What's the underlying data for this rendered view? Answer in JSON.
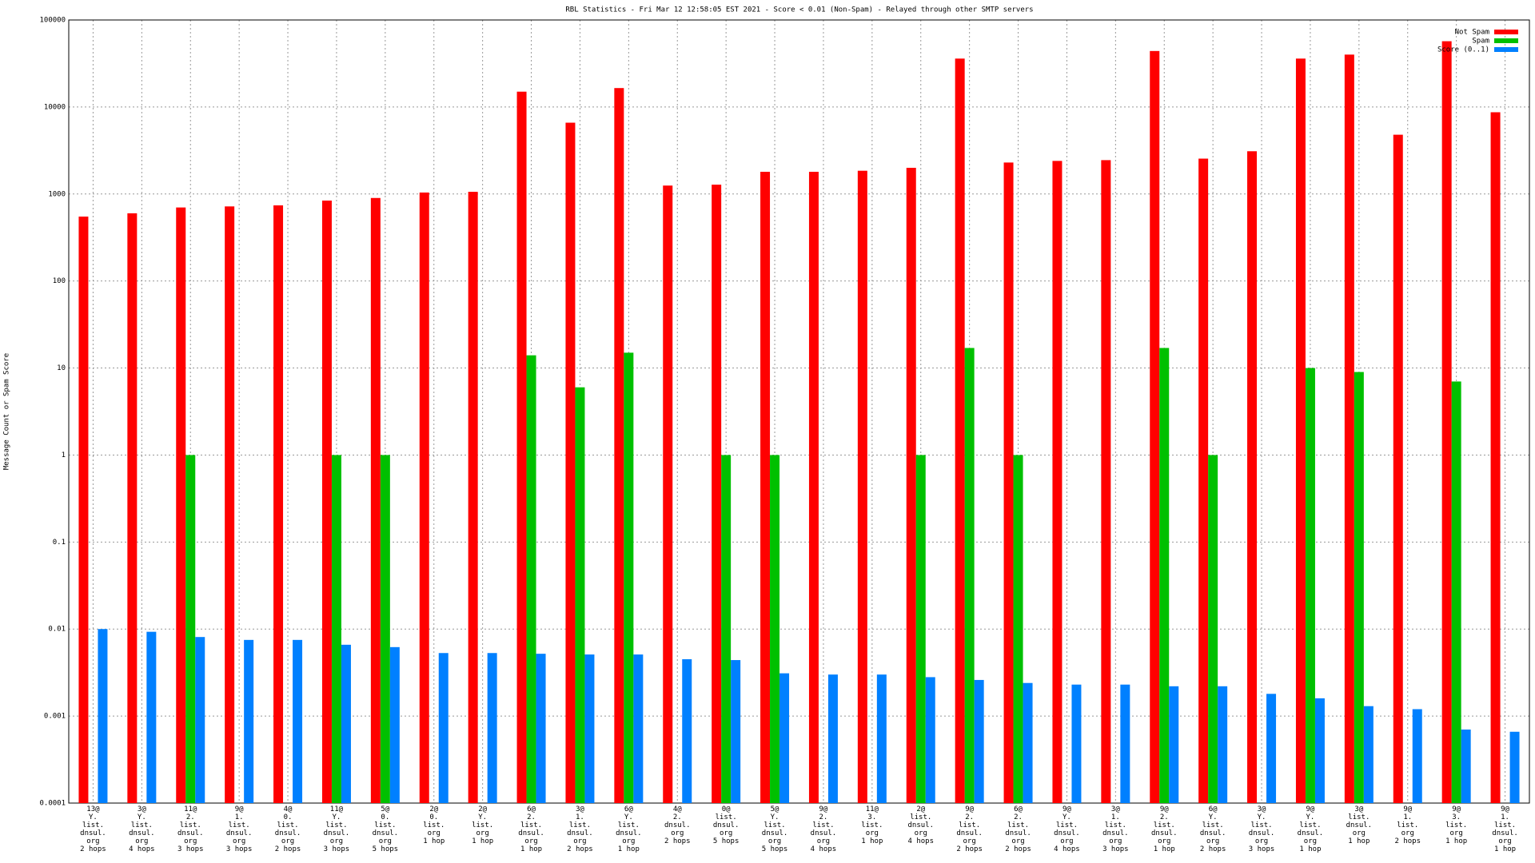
{
  "chart_data": {
    "type": "bar",
    "log_scale": true,
    "grid": true,
    "legend": "top-right",
    "title": "RBL Statistics - Fri Mar 12 12:58:05 EST 2021 - Score < 0.01 (Non-Spam) - Relayed through other SMTP servers",
    "ylabel": "Message Count or Spam Score",
    "categories": [
      "13@\nY.\nlist.\ndnsul.\norg\n2 hops",
      "3@\nY.\nlist.\ndnsul.\norg\n4 hops",
      "11@\n2.\nlist.\ndnsul.\norg\n3 hops",
      "9@\n1.\nlist.\ndnsul.\norg\n3 hops",
      "4@\n0.\nlist.\ndnsul.\norg\n2 hops",
      "11@\nY.\nlist.\ndnsul.\norg\n3 hops",
      "5@\n0.\nlist.\ndnsul.\norg\n5 hops",
      "2@\n0.\nlist.\norg\n1 hop",
      "2@\nY.\nlist.\norg\n1 hop",
      "6@\n2.\nlist.\ndnsul.\norg\n1 hop",
      "3@\n1.\nlist.\ndnsul.\norg\n2 hops",
      "6@\nY.\nlist.\ndnsul.\norg\n1 hop",
      "4@\n2.\ndnsul.\norg\n2 hops",
      "0@\nlist.\ndnsul.\norg\n5 hops",
      "5@\nY.\nlist.\ndnsul.\norg\n5 hops",
      "9@\n2.\nlist.\ndnsul.\norg\n4 hops",
      "11@\n3.\nlist.\norg\n1 hop",
      "2@\nlist.\ndnsul.\norg\n4 hops",
      "9@\n2.\nlist.\ndnsul.\norg\n2 hops",
      "6@\n2.\nlist.\ndnsul.\norg\n2 hops",
      "9@\nY.\nlist.\ndnsul.\norg\n4 hops",
      "3@\n1.\nlist.\ndnsul.\norg\n3 hops",
      "9@\n2.\nlist.\ndnsul.\norg\n1 hop",
      "6@\nY.\nlist.\ndnsul.\norg\n2 hops",
      "3@\nY.\nlist.\ndnsul.\norg\n3 hops",
      "9@\nY.\nlist.\ndnsul.\norg\n1 hop",
      "3@\nlist.\ndnsul.\norg\n1 hop",
      "9@\n1.\nlist.\norg\n2 hops",
      "9@\n3.\nlist.\norg\n1 hop",
      "9@\n1.\nlist.\ndnsul.\norg\n1 hop"
    ],
    "series": [
      {
        "name": "Not Spam",
        "color": "#ff0000",
        "values": [
          550,
          600,
          700,
          720,
          740,
          840,
          900,
          1040,
          1060,
          15000,
          6600,
          16500,
          1250,
          1280,
          1800,
          1800,
          1850,
          2000,
          36000,
          2300,
          2400,
          2450,
          44000,
          2550,
          3100,
          36000,
          40000,
          4800,
          57000,
          8700
        ]
      },
      {
        "name": "Spam",
        "color": "#00c000",
        "values": [
          null,
          null,
          1,
          null,
          null,
          1,
          1,
          null,
          null,
          14,
          6,
          15,
          null,
          1,
          1,
          null,
          null,
          1,
          17,
          1,
          null,
          null,
          17,
          1,
          null,
          10,
          9,
          null,
          7,
          null
        ]
      },
      {
        "name": "Score (0..1)",
        "color": "#0080ff",
        "values": [
          0.01,
          0.0093,
          0.0081,
          0.0075,
          0.0075,
          0.0066,
          0.0062,
          0.0053,
          0.0053,
          0.0052,
          0.0051,
          0.0051,
          0.0045,
          0.0044,
          0.0031,
          0.003,
          0.003,
          0.0028,
          0.0026,
          0.0024,
          0.0023,
          0.0023,
          0.0022,
          0.0022,
          0.0018,
          0.0016,
          0.0013,
          0.0012,
          0.0007,
          0.00066
        ]
      }
    ],
    "ylim": [
      0.0001,
      100000
    ],
    "yticks": [
      0.0001,
      0.001,
      0.01,
      0.1,
      1,
      10,
      100,
      1000,
      10000,
      100000
    ]
  }
}
